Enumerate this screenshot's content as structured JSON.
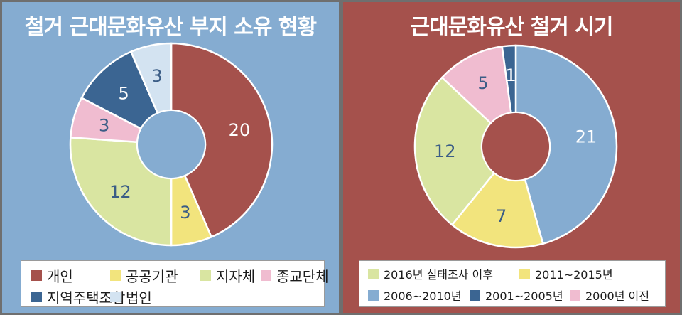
{
  "chart_data": [
    {
      "type": "pie",
      "title": "철거 근대문화유산 부지 소유 현황",
      "series": [
        {
          "name": "개인",
          "value": 20,
          "color": "#a5514c"
        },
        {
          "name": "공공기관",
          "value": 3,
          "color": "#f2e47d"
        },
        {
          "name": "지자체",
          "value": 12,
          "color": "#d9e5a1"
        },
        {
          "name": "종교단체",
          "value": 3,
          "color": "#f0bcd0"
        },
        {
          "name": "지역주택조합",
          "value": 5,
          "color": "#3b6592"
        },
        {
          "name": "법인",
          "value": 3,
          "color": "#d3e3f1"
        }
      ],
      "legend_rows": [
        [
          "개인",
          "공공기관",
          "지자체",
          "종교단체"
        ],
        [
          "지역주택조합",
          "법인"
        ]
      ],
      "background": "#85acd1",
      "center_color": "#85acd1"
    },
    {
      "type": "pie",
      "title": "근대문화유산 철거 시기",
      "series": [
        {
          "name": "2006~2010년",
          "value": 21,
          "color": "#85acd1"
        },
        {
          "name": "2011~2015년",
          "value": 7,
          "color": "#f2e47d"
        },
        {
          "name": "2016년 실태조사 이후",
          "value": 12,
          "color": "#d9e5a1"
        },
        {
          "name": "2000년 이전",
          "value": 5,
          "color": "#f0bcd0"
        },
        {
          "name": "2001~2005년",
          "value": 1,
          "color": "#3b6592"
        }
      ],
      "legend_rows": [
        [
          "2016년 실태조사 이후",
          "2011~2015년"
        ],
        [
          "2006~2010년",
          "2001~2005년",
          "2000년 이전"
        ]
      ],
      "background": "#a5514c",
      "center_color": "#a5514c"
    }
  ]
}
